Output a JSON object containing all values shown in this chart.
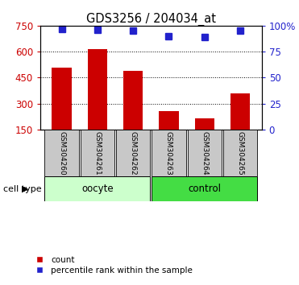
{
  "title": "GDS3256 / 204034_at",
  "categories": [
    "GSM304260",
    "GSM304261",
    "GSM304262",
    "GSM304263",
    "GSM304264",
    "GSM304265"
  ],
  "bar_values": [
    510,
    615,
    490,
    255,
    215,
    360
  ],
  "percentile_values": [
    97,
    96,
    95,
    90,
    89,
    95
  ],
  "bar_color": "#cc0000",
  "dot_color": "#2222cc",
  "ylim_left": [
    150,
    750
  ],
  "yticks_left": [
    150,
    300,
    450,
    600,
    750
  ],
  "ylim_right": [
    0,
    100
  ],
  "yticks_right": [
    0,
    25,
    50,
    75,
    100
  ],
  "group_labels": [
    "oocyte",
    "control"
  ],
  "group_colors": [
    "#ccffcc",
    "#44dd44"
  ],
  "cell_type_label": "cell type",
  "legend_items": [
    "count",
    "percentile rank within the sample"
  ],
  "bar_width": 0.55,
  "tick_label_bg": "#c8c8c8",
  "plot_bg": "#ffffff"
}
